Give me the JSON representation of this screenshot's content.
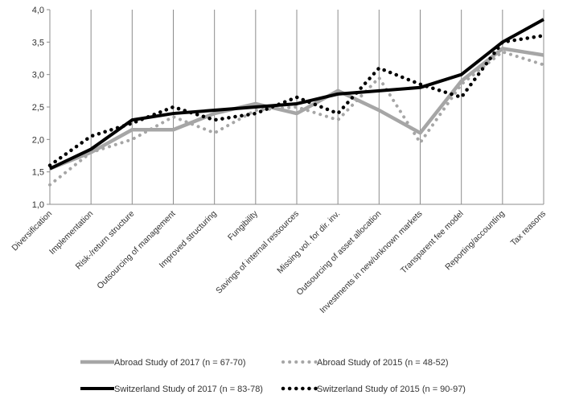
{
  "chart_data": {
    "type": "line",
    "categories": [
      "Diversification",
      "Implementation",
      "Risk-/return structure",
      "Outsourcing of management",
      "Improved structuring",
      "Fungibility",
      "Savings of internal ressources",
      "Missing vol. for dir. inv.",
      "Outsourcing of asset allocation",
      "Investments in new/unknown markets",
      "Transparent fee model",
      "Reporting/accounting",
      "Tax reasons"
    ],
    "ylim": [
      1.0,
      4.0
    ],
    "yticks": [
      "1,0",
      "1,5",
      "2,0",
      "2,5",
      "3,0",
      "3,5",
      "4,0"
    ],
    "grid": "vertical lines at each category",
    "legend_position": "bottom",
    "series": [
      {
        "name": "Abroad Study of 2017 (n = 67-70)",
        "color": "#a6a6a6",
        "style": "solid",
        "values": [
          1.55,
          1.8,
          2.15,
          2.15,
          2.4,
          2.55,
          2.4,
          2.75,
          2.45,
          2.1,
          2.9,
          3.4,
          3.3
        ]
      },
      {
        "name": "Abroad Study of 2015 (n = 48-52)",
        "color": "#a6a6a6",
        "style": "dotted",
        "values": [
          1.3,
          1.8,
          2.0,
          2.35,
          2.1,
          2.45,
          2.5,
          2.3,
          2.95,
          1.95,
          2.85,
          3.35,
          3.15
        ]
      },
      {
        "name": "Switzerland Study of 2017 (n = 83-78)",
        "color": "#000000",
        "style": "solid",
        "values": [
          1.55,
          1.85,
          2.3,
          2.4,
          2.45,
          2.5,
          2.55,
          2.7,
          2.75,
          2.8,
          3.0,
          3.5,
          3.85
        ]
      },
      {
        "name": "Switzerland Study of 2015 (n = 90-97)",
        "color": "#000000",
        "style": "dotted",
        "values": [
          1.6,
          2.05,
          2.25,
          2.5,
          2.3,
          2.4,
          2.65,
          2.4,
          3.1,
          2.85,
          2.65,
          3.5,
          3.6
        ]
      }
    ]
  }
}
